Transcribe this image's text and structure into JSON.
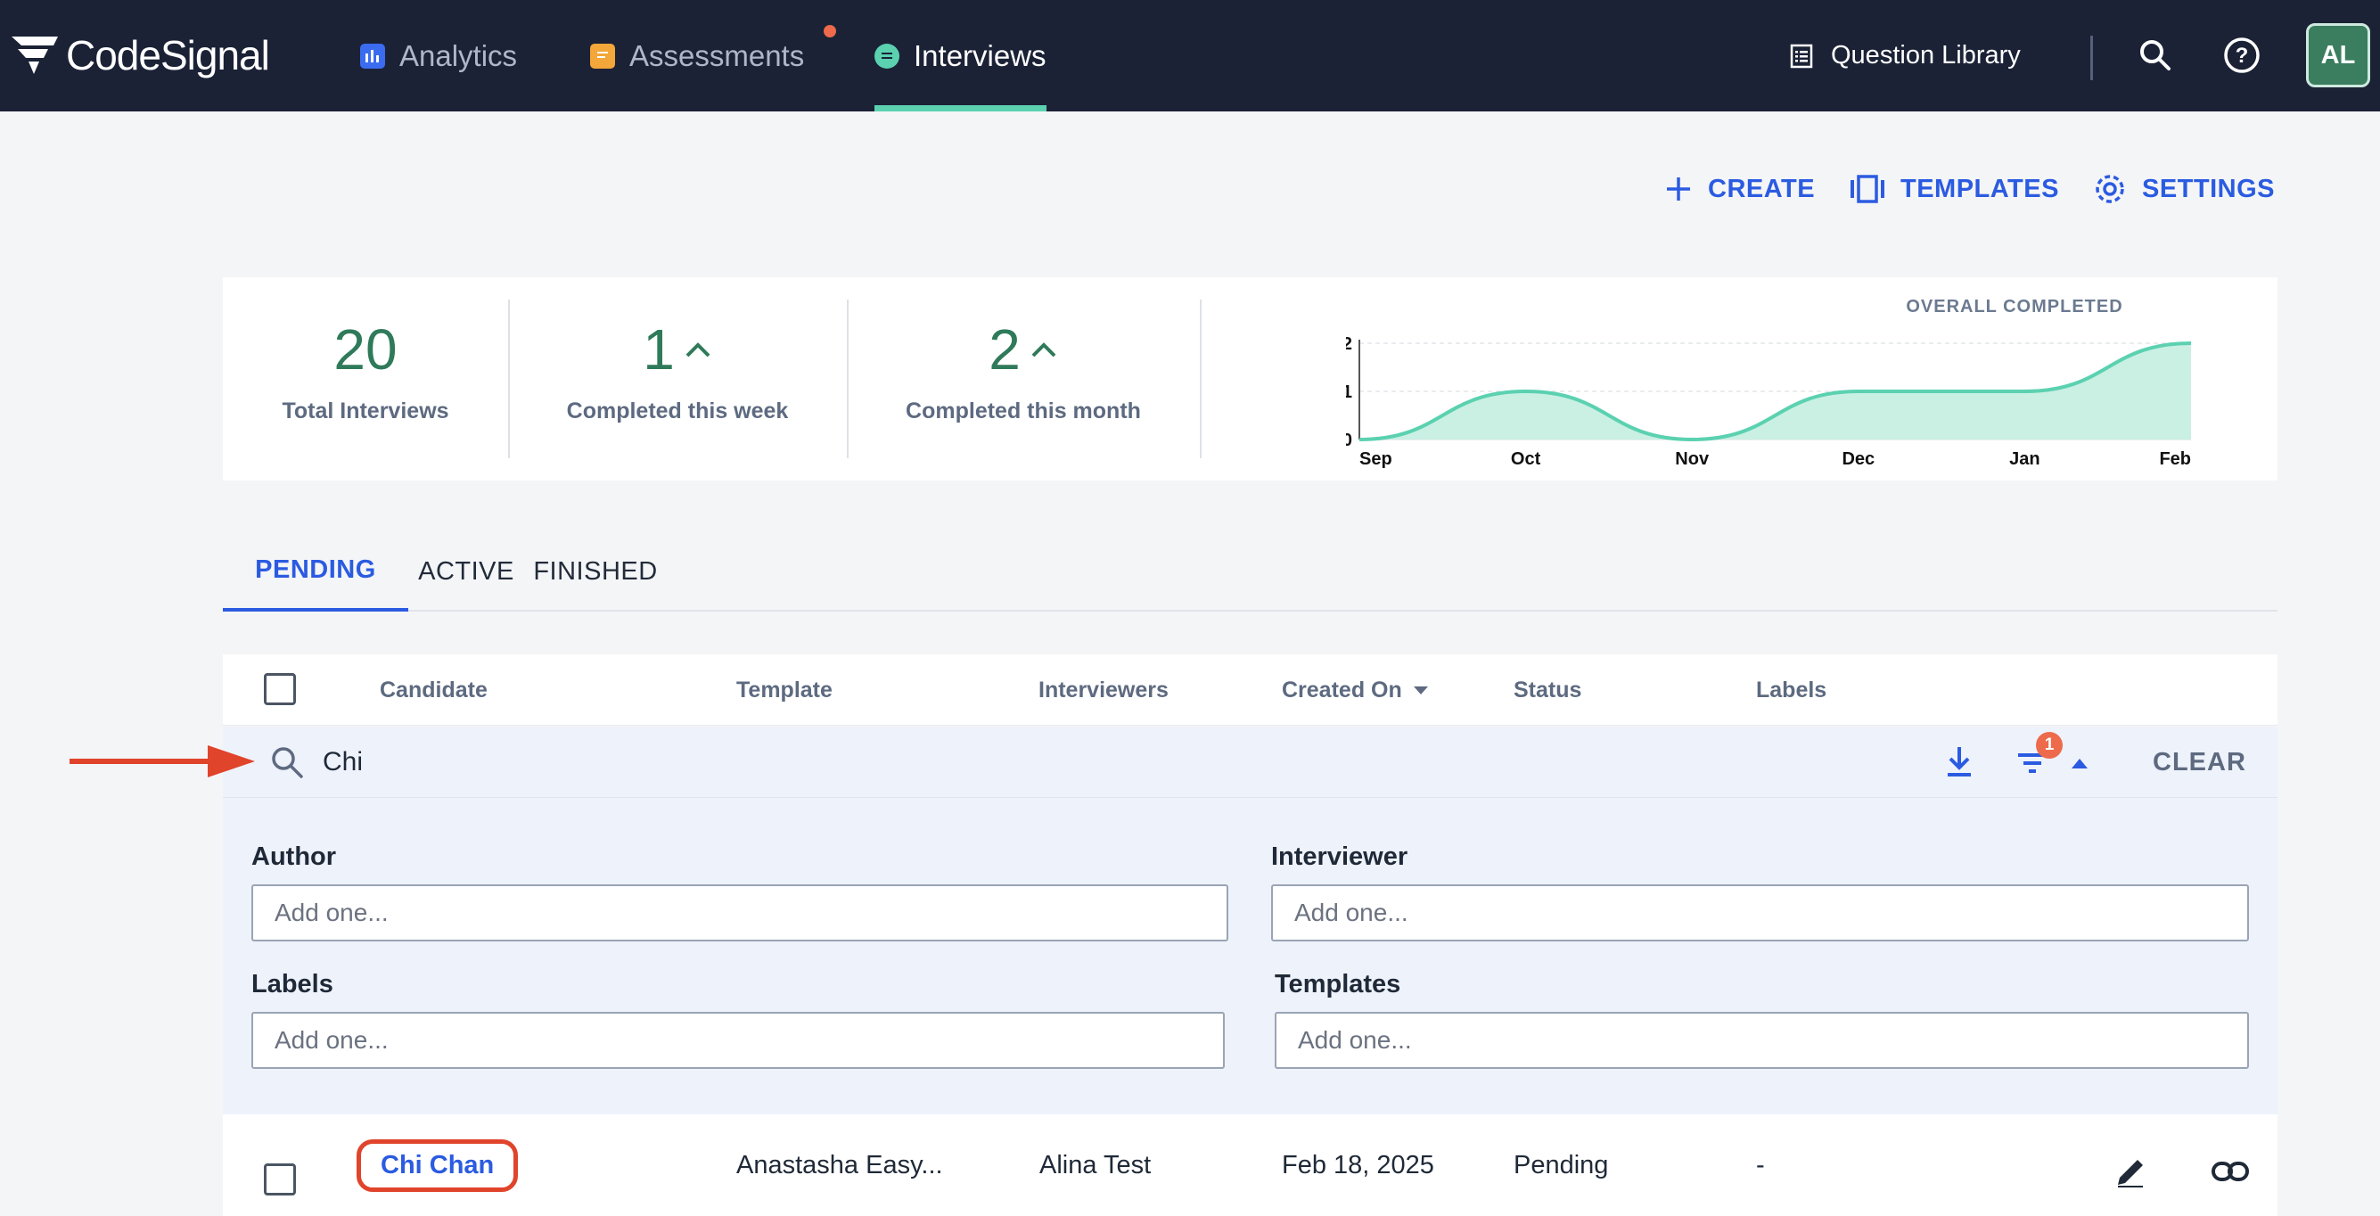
{
  "nav": {
    "brand": "CodeSignal",
    "tabs": [
      {
        "label": "Analytics",
        "icon": "bar-chart-icon"
      },
      {
        "label": "Assessments",
        "icon": "clipboard-icon",
        "notification": true
      },
      {
        "label": "Interviews",
        "icon": "chat-icon",
        "active": true
      }
    ],
    "question_library": "Question Library",
    "avatar": "AL"
  },
  "actions": {
    "create": "CREATE",
    "templates": "TEMPLATES",
    "settings": "SETTINGS"
  },
  "stats": {
    "total": {
      "value": "20",
      "label": "Total Interviews"
    },
    "week": {
      "value": "1",
      "label": "Completed this week"
    },
    "month": {
      "value": "2",
      "label": "Completed this month"
    }
  },
  "chart_data": {
    "type": "area",
    "title": "OVERALL COMPLETED",
    "x": [
      "Sep",
      "Oct",
      "Nov",
      "Dec",
      "Jan",
      "Feb"
    ],
    "values": [
      0,
      1,
      0,
      1,
      1,
      2
    ],
    "yticks": [
      0,
      1,
      2
    ],
    "ylim": [
      0,
      2
    ],
    "grid": true,
    "fill_color": "#c9f0e3",
    "line_color": "#5bd1b0"
  },
  "tabs": [
    "PENDING",
    "ACTIVE",
    "FINISHED"
  ],
  "table": {
    "headers": [
      "Candidate",
      "Template",
      "Interviewers",
      "Created On",
      "Status",
      "Labels"
    ],
    "rows": [
      {
        "candidate": "Chi Chan",
        "template": "Anastasha Easy...",
        "interviewers": "Alina Test",
        "created_on": "Feb 18, 2025",
        "status": "Pending",
        "labels": "-"
      }
    ]
  },
  "filters": {
    "search_value": "Chi",
    "filter_count": "1",
    "clear": "CLEAR",
    "author": {
      "label": "Author",
      "placeholder": "Add one..."
    },
    "interviewer": {
      "label": "Interviewer",
      "placeholder": "Add one..."
    },
    "labels": {
      "label": "Labels",
      "placeholder": "Add one..."
    },
    "templates": {
      "label": "Templates",
      "placeholder": "Add one..."
    }
  },
  "colors": {
    "accent": "#2b5be1",
    "nav_bg": "#1b2236",
    "highlight": "#e0442b",
    "stat_green": "#2f7a5a"
  }
}
